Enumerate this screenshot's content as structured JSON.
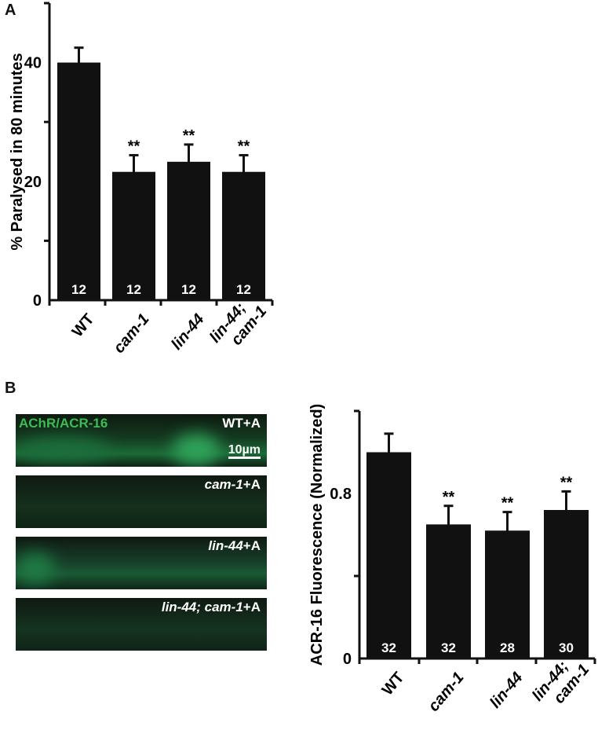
{
  "panel_a": {
    "letter": "A"
  },
  "panel_b": {
    "letter": "B",
    "images": [
      {
        "label": "WT+A",
        "channel": "AChR/ACR-16",
        "scale_bar": "10µm"
      },
      {
        "label": "cam-1+A"
      },
      {
        "label": "lin-44+A"
      },
      {
        "label": "lin-44; cam-1+A"
      }
    ]
  },
  "chart_data": [
    {
      "type": "bar",
      "title": "A",
      "xlabel": "",
      "ylabel": "% Paralysed in 80 minutes",
      "categories": [
        "WT",
        "cam-1",
        "lin-44",
        "lin-44; cam-1"
      ],
      "values": [
        40,
        21.6,
        23.3,
        21.6
      ],
      "error": [
        2.5,
        2.8,
        2.9,
        2.8
      ],
      "n": [
        12,
        12,
        12,
        12
      ],
      "significance": [
        "",
        "**",
        "**",
        "**"
      ],
      "yticks": [
        0,
        20,
        40
      ],
      "ylim": [
        0,
        50
      ],
      "bar_color": "#111111"
    },
    {
      "type": "bar",
      "title": "B",
      "xlabel": "",
      "ylabel": "ACR-16 Fluorescence (Normalized)",
      "categories": [
        "WT",
        "cam-1",
        "lin-44",
        "lin-44; cam-1"
      ],
      "values": [
        1.0,
        0.65,
        0.62,
        0.72
      ],
      "error": [
        0.09,
        0.09,
        0.09,
        0.09
      ],
      "n": [
        32,
        32,
        28,
        30
      ],
      "significance": [
        "",
        "**",
        "**",
        "**"
      ],
      "yticks": [
        0,
        0.8
      ],
      "ylim": [
        0,
        1.2
      ],
      "bar_color": "#111111"
    }
  ]
}
